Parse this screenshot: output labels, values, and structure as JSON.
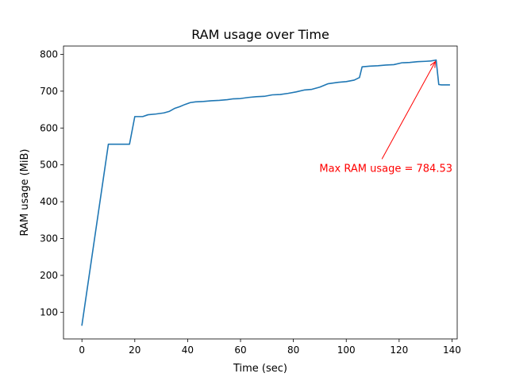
{
  "chart_data": {
    "type": "line",
    "title": "RAM usage over Time",
    "xlabel": "Time (sec)",
    "ylabel": "RAM usage (MiB)",
    "xlim": [
      -6.97,
      141.97
    ],
    "ylim": [
      27.5,
      822.5
    ],
    "xticks": [
      0,
      20,
      40,
      60,
      80,
      100,
      120,
      140
    ],
    "yticks": [
      100,
      200,
      300,
      400,
      500,
      600,
      700,
      800
    ],
    "grid": false,
    "legend": "none",
    "series": [
      {
        "color": "#1f77b4",
        "x": [
          0,
          10,
          18,
          20,
          23,
          25,
          28,
          31,
          33,
          35,
          37,
          39,
          41,
          43,
          46,
          49,
          52,
          55,
          57,
          60,
          63,
          66,
          69,
          72,
          75,
          78,
          81,
          84,
          87,
          90,
          93,
          97,
          100,
          103,
          105,
          106,
          109,
          112,
          115,
          118,
          121,
          124,
          127,
          130,
          132,
          134,
          135,
          136,
          139
        ],
        "y": [
          65,
          556,
          556,
          631,
          631,
          636,
          638,
          641,
          645,
          653,
          658,
          664,
          669,
          671,
          672,
          674,
          675,
          677,
          679,
          680,
          683,
          685,
          686,
          690,
          691,
          694,
          698,
          703,
          705,
          711,
          720,
          724,
          726,
          730,
          737,
          766,
          768,
          769,
          771,
          772,
          777,
          778,
          780,
          781,
          782,
          784.53,
          718,
          717,
          717
        ]
      }
    ],
    "annotation": {
      "text": "Max RAM usage = 784.53",
      "color": "#ff0000",
      "text_at": [
        115,
        490
      ],
      "point_at": [
        134,
        784.53
      ]
    }
  }
}
